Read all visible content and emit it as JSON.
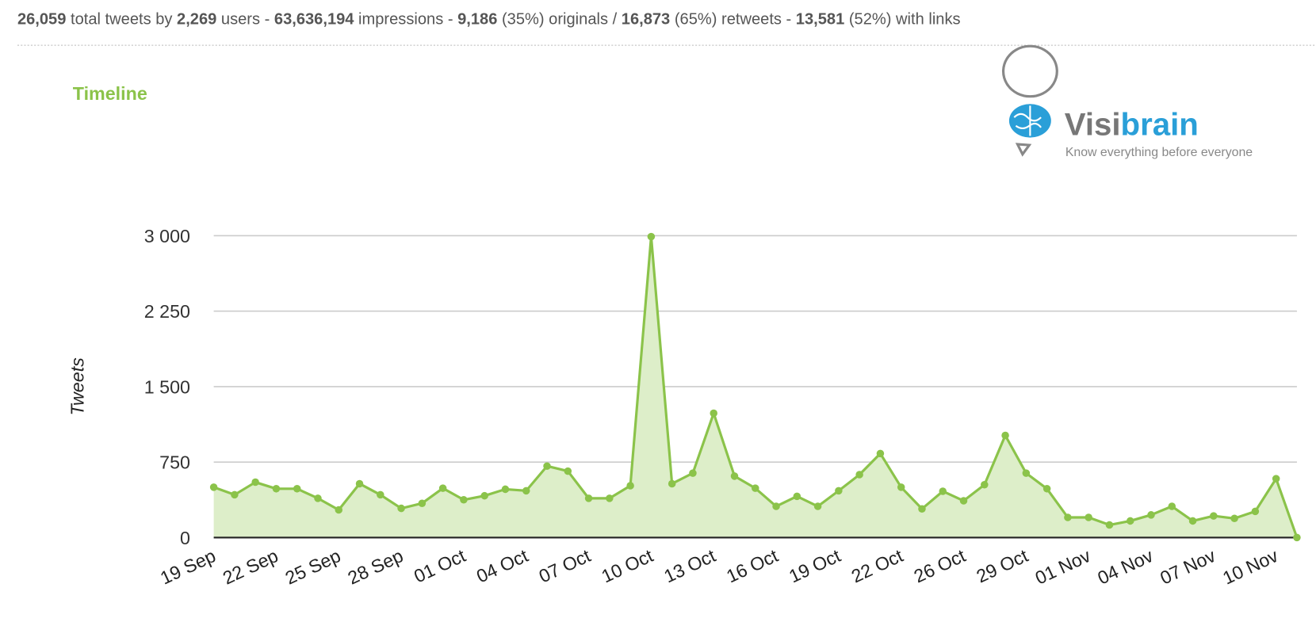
{
  "summary": [
    {
      "number": "26,059",
      "text": " total tweets by "
    },
    {
      "number": "2,269",
      "text": " users - "
    },
    {
      "number": "63,636,194",
      "text": " impressions - "
    },
    {
      "number": "9,186",
      "text": " (35%) originals / "
    },
    {
      "number": "16,873",
      "text": " (65%) retweets - "
    },
    {
      "number": "13,581",
      "text": " (52%) with links"
    }
  ],
  "logo": {
    "name": [
      "Visi",
      "brain"
    ],
    "tagline": "Know everything before everyone"
  },
  "chart_data": {
    "type": "area",
    "title": "Timeline",
    "y_label": "Tweets",
    "color": "#8bc34a",
    "fill": "#ddeec9",
    "grid": true,
    "categories": [
      "19 Sep",
      null,
      null,
      "22 Sep",
      null,
      null,
      "25 Sep",
      null,
      null,
      "28 Sep",
      null,
      null,
      "01 Oct",
      null,
      null,
      "04 Oct",
      null,
      null,
      "07 Oct",
      null,
      null,
      "10 Oct",
      null,
      null,
      "13 Oct",
      null,
      null,
      "16 Oct",
      null,
      null,
      "19 Oct",
      null,
      null,
      "22 Oct",
      null,
      null,
      "26 Oct",
      null,
      null,
      "29 Oct",
      null,
      null,
      "01 Nov",
      null,
      null,
      "04 Nov",
      null,
      null,
      "07 Nov",
      null,
      null,
      "10 Nov",
      null
    ],
    "values": [
      500,
      425,
      550,
      485,
      485,
      390,
      275,
      535,
      425,
      290,
      340,
      490,
      375,
      415,
      480,
      465,
      710,
      660,
      390,
      390,
      515,
      2990,
      535,
      640,
      1235,
      610,
      490,
      310,
      410,
      310,
      465,
      625,
      835,
      500,
      285,
      460,
      365,
      525,
      1015,
      640,
      485,
      200,
      200,
      125,
      165,
      225,
      310,
      165,
      215,
      190,
      260,
      585,
      0
    ],
    "ylim": [
      0,
      3000
    ],
    "yticks": [
      0,
      750,
      {
        "value": 1500,
        "label": "1 500"
      },
      {
        "value": 2250,
        "label": "2 250"
      },
      {
        "value": 3000,
        "label": "3 000"
      }
    ]
  }
}
